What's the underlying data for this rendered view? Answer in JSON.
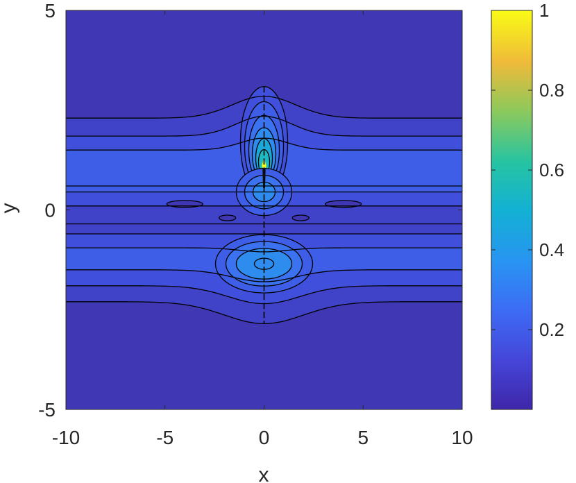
{
  "chart_data": {
    "type": "contour",
    "title": "",
    "xlabel": "x",
    "ylabel": "y",
    "xlim": [
      -10,
      10
    ],
    "ylim": [
      -5,
      5
    ],
    "xticks": [
      -10,
      -5,
      0,
      5,
      10
    ],
    "yticks": [
      -5,
      0,
      5
    ],
    "xtick_labels": [
      "-10",
      "-5",
      "0",
      "5",
      "10"
    ],
    "ytick_labels": [
      "-5",
      "0",
      "5"
    ],
    "colormap": "parula",
    "colorbar": {
      "range": [
        0,
        1
      ],
      "ticks": [
        0.2,
        0.4,
        0.6,
        0.8,
        1
      ],
      "tick_labels": [
        "0.2",
        "0.4",
        "0.6",
        "0.8",
        "1"
      ]
    },
    "grid": false,
    "colors": {
      "background_level": "#3f37b3",
      "band_level_1": "#4043c8",
      "band_level_2": "#4150dc",
      "band_level_3": "#3f5ee8",
      "band_level_4": "#3a72f0",
      "band_level_5": "#2e8cef",
      "band_level_6": "#1ea8d8",
      "band_level_7": "#1fbac2",
      "peak": "#f9fb0e"
    }
  }
}
